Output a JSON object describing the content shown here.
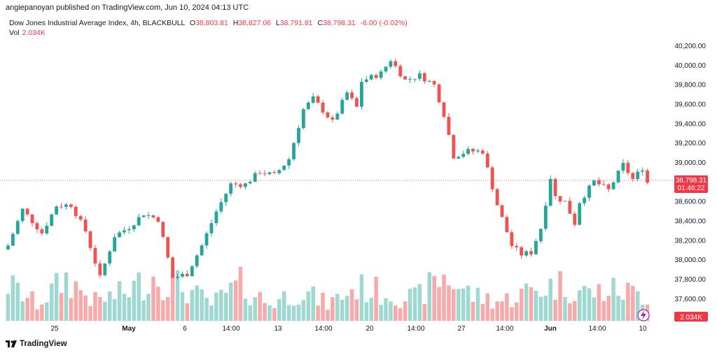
{
  "header": {
    "publisher": "angiepanoyan published on TradingView.com, Jun 10, 2024 04:13 UTC"
  },
  "symbol": {
    "name": "Dow Jones Industrial Average Index, 4h, BLACKBULL",
    "open_label": "O",
    "open": "38,803.81",
    "high_label": "H",
    "high": "38,827.06",
    "low_label": "L",
    "low": "38,791.81",
    "close_label": "C",
    "close": "38,798.31",
    "change": "-6.00 (-0.02%)"
  },
  "volume": {
    "label": "Vol",
    "value": "2.034K"
  },
  "price_badge": {
    "price": "38,798.31",
    "countdown": "01:46:22",
    "color": "#f23645"
  },
  "volume_badge": {
    "value": "2.034K",
    "color": "#f23645"
  },
  "footer": {
    "brand": "TradingView"
  },
  "colors": {
    "up": "#26a69a",
    "down": "#ef5350",
    "vol_up": "#9fd8d1",
    "vol_down": "#f7aaa9"
  },
  "chart_data": {
    "type": "candlestick",
    "yaxis_ticks": [
      "40,200.00",
      "40,000.00",
      "39,800.00",
      "39,600.00",
      "39,400.00",
      "39,200.00",
      "39,000.00",
      "38,800.00",
      "38,600.00",
      "38,400.00",
      "38,200.00",
      "38,000.00",
      "37,800.00",
      "37,600.00"
    ],
    "ylim": [
      37470,
      40300
    ],
    "xaxis_ticks": [
      "25",
      "May",
      "6",
      "14:00",
      "13",
      "14:00",
      "20",
      "14:00",
      "27",
      "14:00",
      "Jun",
      "14:00",
      "10"
    ],
    "grid": false,
    "last_price": 38798.31,
    "close_path": [
      [
        0,
        38150
      ],
      [
        3,
        38520
      ],
      [
        7,
        38280
      ],
      [
        10,
        38560
      ],
      [
        13,
        38570
      ],
      [
        16,
        38300
      ],
      [
        19,
        37820
      ],
      [
        22,
        38250
      ],
      [
        25,
        38340
      ],
      [
        28,
        38480
      ],
      [
        31,
        38420
      ],
      [
        34,
        37820
      ],
      [
        37,
        37860
      ],
      [
        40,
        38150
      ],
      [
        43,
        38500
      ],
      [
        46,
        38780
      ],
      [
        49,
        38780
      ],
      [
        52,
        38910
      ],
      [
        55,
        38870
      ],
      [
        58,
        39040
      ],
      [
        61,
        39550
      ],
      [
        63,
        39660
      ],
      [
        67,
        39420
      ],
      [
        70,
        39720
      ],
      [
        72,
        39570
      ],
      [
        73,
        39840
      ],
      [
        77,
        39920
      ],
      [
        79,
        40060
      ],
      [
        82,
        39850
      ],
      [
        85,
        39900
      ],
      [
        88,
        39800
      ],
      [
        90,
        39500
      ],
      [
        92,
        39070
      ],
      [
        95,
        39120
      ],
      [
        98,
        39120
      ],
      [
        101,
        38570
      ],
      [
        104,
        38150
      ],
      [
        106,
        38060
      ],
      [
        108,
        38080
      ],
      [
        110,
        38330
      ],
      [
        112,
        38850
      ],
      [
        113,
        38650
      ],
      [
        115,
        38600
      ],
      [
        117,
        38380
      ],
      [
        118,
        38600
      ],
      [
        121,
        38810
      ],
      [
        124,
        38720
      ],
      [
        127,
        38980
      ],
      [
        129,
        38830
      ],
      [
        131,
        38950
      ],
      [
        132,
        38798
      ]
    ],
    "volume_path": [
      [
        0,
        0.65
      ],
      [
        6,
        0.3
      ],
      [
        12,
        0.75
      ],
      [
        18,
        0.35
      ],
      [
        24,
        0.5
      ],
      [
        30,
        0.8
      ],
      [
        36,
        0.6
      ],
      [
        42,
        0.3
      ],
      [
        48,
        0.65
      ],
      [
        54,
        0.3
      ],
      [
        60,
        0.55
      ],
      [
        66,
        0.3
      ],
      [
        72,
        0.6
      ],
      [
        78,
        0.5
      ],
      [
        84,
        0.4
      ],
      [
        90,
        0.8
      ],
      [
        96,
        0.45
      ],
      [
        102,
        0.35
      ],
      [
        108,
        0.55
      ],
      [
        114,
        0.65
      ],
      [
        120,
        0.5
      ],
      [
        126,
        0.55
      ],
      [
        132,
        0.45
      ]
    ],
    "candle_count": 133
  }
}
